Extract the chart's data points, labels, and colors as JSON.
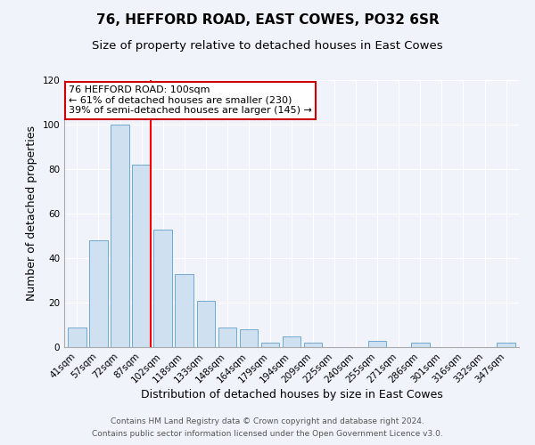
{
  "title": "76, HEFFORD ROAD, EAST COWES, PO32 6SR",
  "subtitle": "Size of property relative to detached houses in East Cowes",
  "xlabel": "Distribution of detached houses by size in East Cowes",
  "ylabel": "Number of detached properties",
  "bar_color": "#cfe0f0",
  "bar_edge_color": "#6fa8d0",
  "bar_labels": [
    "41sqm",
    "57sqm",
    "72sqm",
    "87sqm",
    "102sqm",
    "118sqm",
    "133sqm",
    "148sqm",
    "164sqm",
    "179sqm",
    "194sqm",
    "209sqm",
    "225sqm",
    "240sqm",
    "255sqm",
    "271sqm",
    "286sqm",
    "301sqm",
    "316sqm",
    "332sqm",
    "347sqm"
  ],
  "bar_values": [
    9,
    48,
    100,
    82,
    53,
    33,
    21,
    9,
    8,
    2,
    5,
    2,
    0,
    0,
    3,
    0,
    2,
    0,
    0,
    0,
    2
  ],
  "red_line_index": 3,
  "ylim": [
    0,
    120
  ],
  "yticks": [
    0,
    20,
    40,
    60,
    80,
    100,
    120
  ],
  "annotation_title": "76 HEFFORD ROAD: 100sqm",
  "annotation_line1": "← 61% of detached houses are smaller (230)",
  "annotation_line2": "39% of semi-detached houses are larger (145) →",
  "annotation_box_color": "#ffffff",
  "annotation_box_edge_color": "#cc0000",
  "footnote1": "Contains HM Land Registry data © Crown copyright and database right 2024.",
  "footnote2": "Contains public sector information licensed under the Open Government Licence v3.0.",
  "background_color": "#f0f4fa",
  "grid_color": "#ffffff",
  "title_fontsize": 11,
  "subtitle_fontsize": 9.5,
  "axis_label_fontsize": 9,
  "tick_fontsize": 7.5,
  "footnote_fontsize": 6.5,
  "annotation_fontsize": 8.0
}
